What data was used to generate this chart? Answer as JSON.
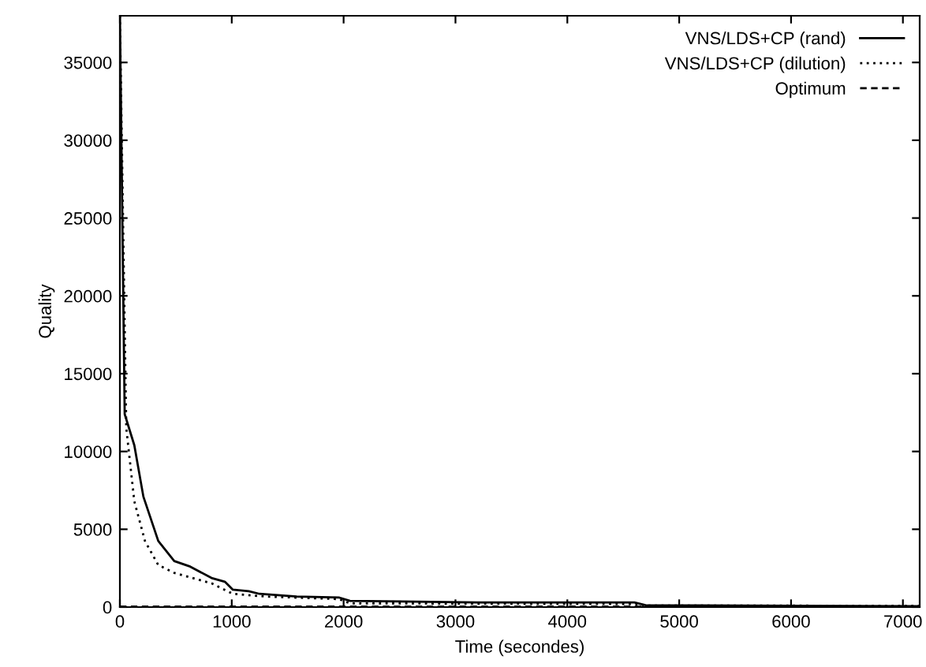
{
  "chart_data": {
    "type": "line",
    "xlabel": "Time (secondes)",
    "ylabel": "Quality",
    "xlim": [
      0,
      7150
    ],
    "ylim": [
      0,
      38000
    ],
    "xticks": [
      0,
      1000,
      2000,
      3000,
      4000,
      5000,
      6000,
      7000
    ],
    "yticks": [
      0,
      5000,
      10000,
      15000,
      20000,
      25000,
      30000,
      35000
    ],
    "grid": false,
    "legend": "top right",
    "series": [
      {
        "name": "VNS/LDS+CP (rand)",
        "color": "#000000",
        "line_style": "solid",
        "x": [
          0,
          43,
          129,
          210,
          343,
          486,
          629,
          819,
          938,
          1010,
          1152,
          1248,
          1581,
          1962,
          2057,
          3200,
          4600,
          4700,
          7150
        ],
        "values": [
          38000,
          12400,
          10400,
          7100,
          4250,
          2960,
          2600,
          1870,
          1630,
          1120,
          1020,
          850,
          680,
          610,
          400,
          300,
          300,
          120,
          60
        ]
      },
      {
        "name": "VNS/LDS+CP (dilution)",
        "color": "#000000",
        "line_style": "dotted",
        "x": [
          0,
          57,
          129,
          224,
          343,
          486,
          819,
          1010,
          1295,
          1962,
          2057,
          4600,
          4700,
          7150
        ],
        "values": [
          38000,
          11500,
          6800,
          4250,
          2700,
          2200,
          1530,
          850,
          680,
          510,
          240,
          200,
          100,
          80
        ]
      },
      {
        "name": "Optimum",
        "color": "#000000",
        "line_style": "dashed",
        "x": [
          0,
          7150
        ],
        "values": [
          30,
          30
        ]
      }
    ]
  }
}
